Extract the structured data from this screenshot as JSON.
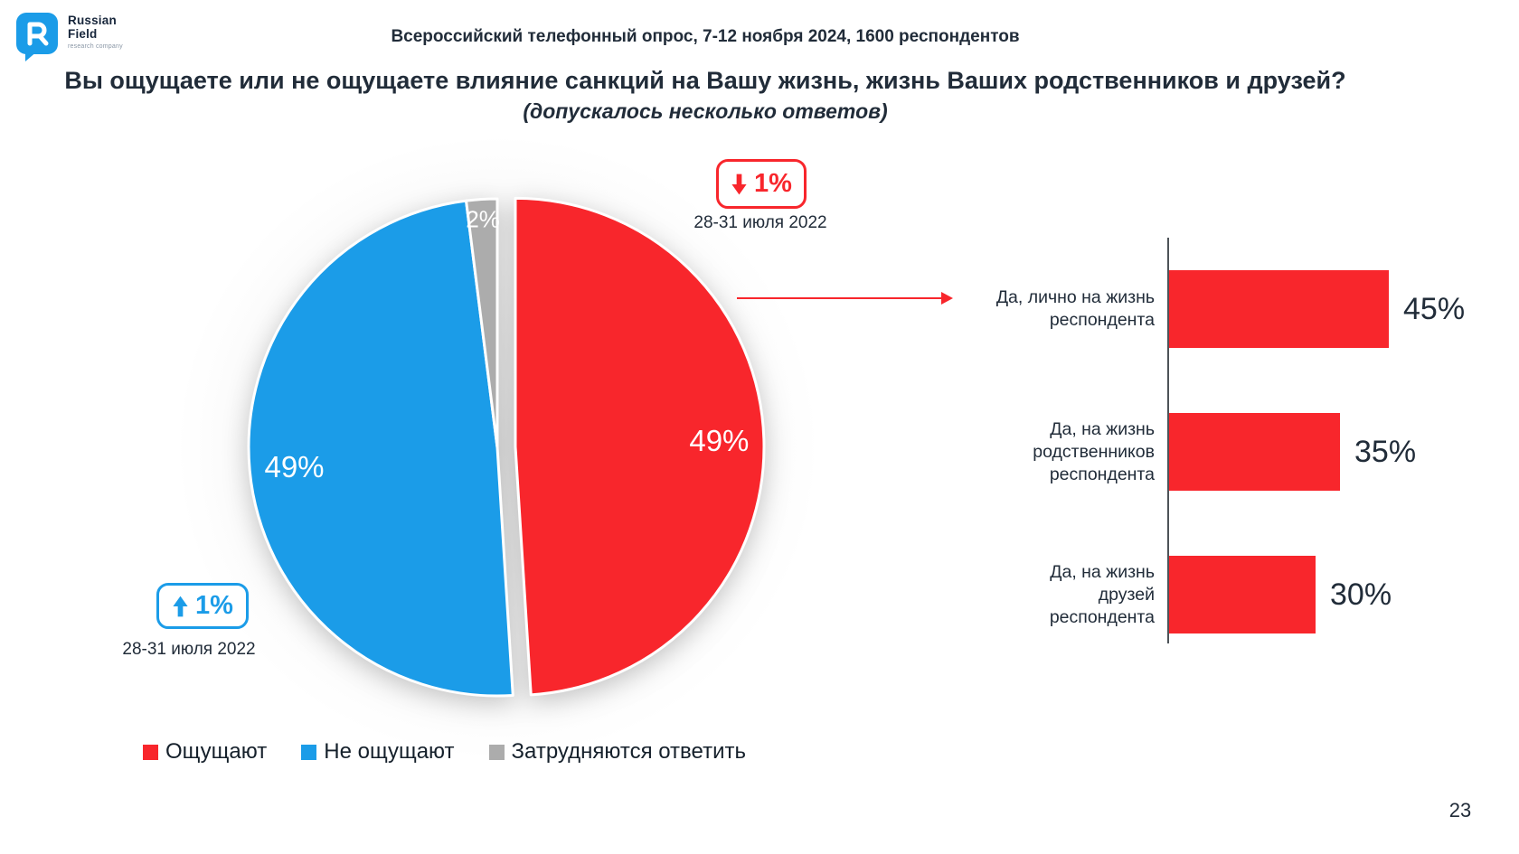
{
  "page_number": "23",
  "logo": {
    "line1": "Russian",
    "line2": "Field",
    "tagline": "research company"
  },
  "header": {
    "survey_info": "Всероссийский телефонный опрос, 7-12 ноября 2024, 1600 респондентов"
  },
  "question": {
    "title": "Вы ощущаете или не ощущаете влияние санкций на Вашу жизнь, жизнь Ваших родственников и друзей?",
    "subtitle": "(допускалось несколько ответов)"
  },
  "colors": {
    "red": "#F8262C",
    "blue": "#1B9CE8",
    "gray": "#ACACAC",
    "dark_text": "#212C39",
    "axis": "#4D5358"
  },
  "annotations": {
    "red_change": {
      "value": "1%",
      "direction": "down",
      "date": "28-31 июля 2022"
    },
    "blue_change": {
      "value": "1%",
      "direction": "up",
      "date": "28-31 июля 2022"
    }
  },
  "legend": [
    {
      "label": "Ощущают",
      "color": "#F8262C"
    },
    {
      "label": "Не ощущают",
      "color": "#1B9CE8"
    },
    {
      "label": "Затрудняются ответить",
      "color": "#ACACAC"
    }
  ],
  "chart_data": [
    {
      "type": "pie",
      "direction": "clockwise",
      "start_angle_deg": 0,
      "slices": [
        {
          "label": "Ощущают",
          "value": 49,
          "display": "49%",
          "color": "#F8262C",
          "exploded": true
        },
        {
          "label": "Не ощущают",
          "value": 49,
          "display": "49%",
          "color": "#1B9CE8",
          "exploded": false
        },
        {
          "label": "Затрудняются ответить",
          "value": 2,
          "display": "2%",
          "color": "#ACACAC",
          "exploded": false
        }
      ]
    },
    {
      "type": "bar",
      "orientation": "horizontal",
      "categories": [
        "Да, лично на жизнь респондента",
        "Да, на жизнь родственников респондента",
        "Да, на жизнь друзей респондента"
      ],
      "category_lines": [
        [
          "Да, лично на жизнь",
          "респондента"
        ],
        [
          "Да, на жизнь",
          "родственников",
          "респондента"
        ],
        [
          "Да, на жизнь",
          "друзей",
          "респондента"
        ]
      ],
      "values": [
        45,
        35,
        30
      ],
      "value_labels": [
        "45%",
        "35%",
        "30%"
      ],
      "bar_color": "#F8262C",
      "xlim": [
        0,
        50
      ]
    }
  ]
}
